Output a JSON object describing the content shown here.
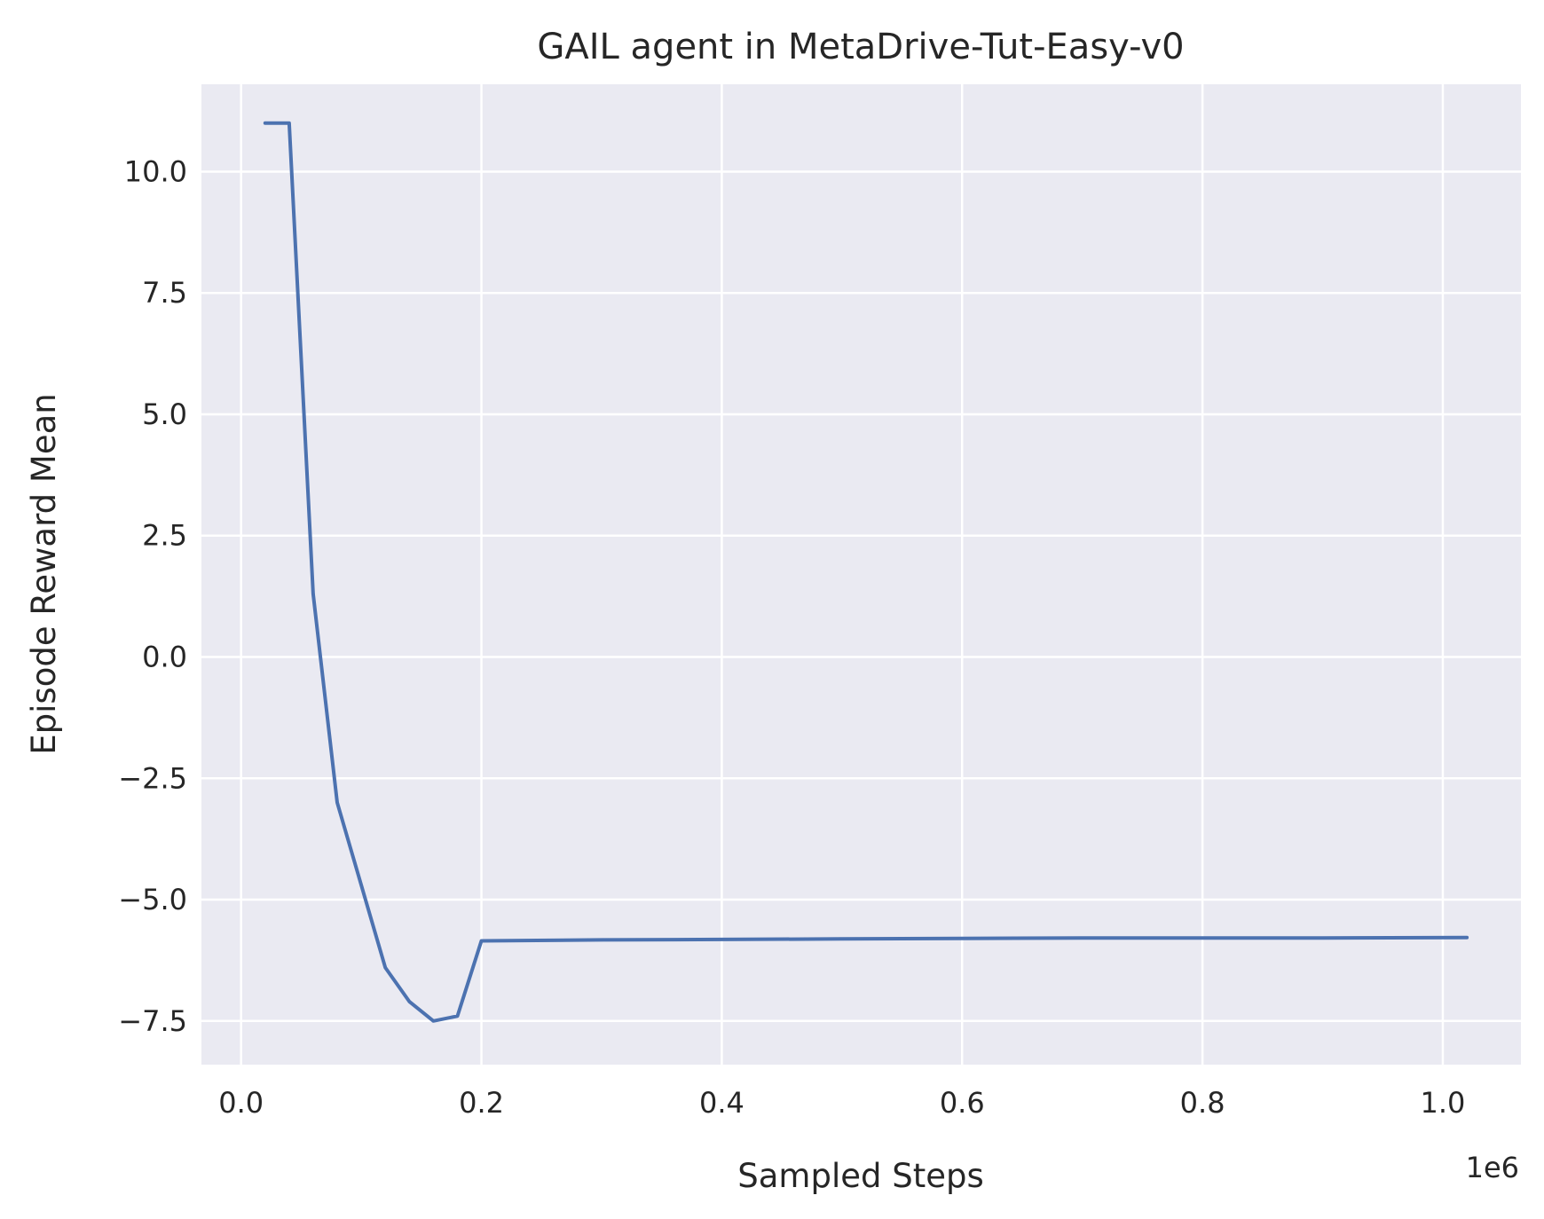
{
  "chart_data": {
    "type": "line",
    "title": "GAIL agent in MetaDrive-Tut-Easy-v0",
    "xlabel": "Sampled Steps",
    "ylabel": "Episode Reward Mean",
    "x_offset_label": "1e6",
    "xlim": [
      -0.033,
      1.065
    ],
    "ylim": [
      -8.4,
      11.8
    ],
    "x_ticks": [
      0.0,
      0.2,
      0.4,
      0.6,
      0.8,
      1.0
    ],
    "x_tick_labels": [
      "0.0",
      "0.2",
      "0.4",
      "0.6",
      "0.8",
      "1.0"
    ],
    "y_ticks": [
      -7.5,
      -5.0,
      -2.5,
      0.0,
      2.5,
      5.0,
      7.5,
      10.0
    ],
    "y_tick_labels": [
      "−7.5",
      "−5.0",
      "−2.5",
      "0.0",
      "2.5",
      "5.0",
      "7.5",
      "10.0"
    ],
    "grid": true,
    "background_color": "#eaeaf2",
    "grid_color": "#ffffff",
    "series": [
      {
        "color": "#4c72b0",
        "x": [
          0.02,
          0.04,
          0.06,
          0.08,
          0.1,
          0.12,
          0.14,
          0.16,
          0.18,
          0.2,
          0.3,
          0.4,
          0.5,
          0.6,
          0.7,
          0.8,
          0.9,
          1.02
        ],
        "y": [
          11.0,
          11.0,
          1.3,
          -3.0,
          -4.7,
          -6.4,
          -7.1,
          -7.5,
          -7.4,
          -5.85,
          -5.83,
          -5.82,
          -5.81,
          -5.8,
          -5.79,
          -5.79,
          -5.79,
          -5.78
        ]
      }
    ]
  }
}
